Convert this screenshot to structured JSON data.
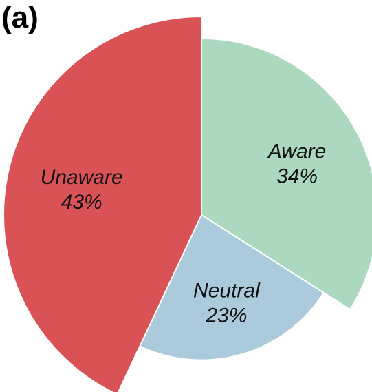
{
  "panel_label": "(a)",
  "chart_data": {
    "type": "pie",
    "variant": "rose (radius varies by slice)",
    "title": "",
    "slices": [
      {
        "label": "Aware",
        "value": 34,
        "value_label": "34%",
        "color": "#acd8c0"
      },
      {
        "label": "Neutral",
        "value": 23,
        "value_label": "23%",
        "color": "#abcadb"
      },
      {
        "label": "Unaware",
        "value": 43,
        "value_label": "43%",
        "color": "#d95356"
      }
    ],
    "start_angle": "12 o'clock",
    "direction": "clockwise",
    "legend": "none"
  }
}
